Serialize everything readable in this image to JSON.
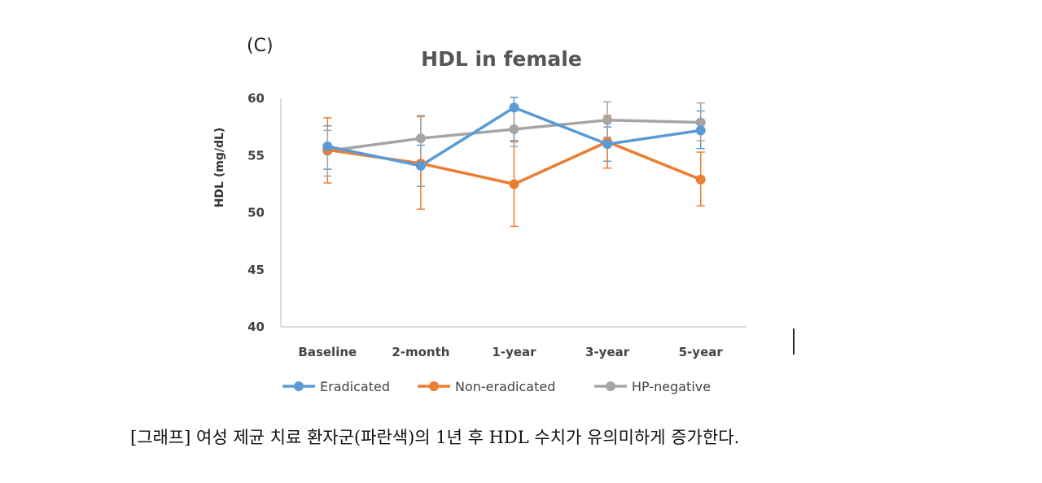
{
  "chart_data": {
    "type": "line",
    "panel_label": "(C)",
    "title": "HDL in female",
    "ylabel": "HDL (mg/dL)",
    "xlabel": "",
    "ylim": [
      40,
      60
    ],
    "yticks": [
      "40",
      "45",
      "50",
      "55",
      "60"
    ],
    "categories": [
      "Baseline",
      "2-month",
      "1-year",
      "3-year",
      "5-year"
    ],
    "error_bars": true,
    "legend_position": "bottom",
    "series": [
      {
        "name": "Eradicated",
        "color": "#5B9BD5",
        "values": [
          55.8,
          54.1,
          59.2,
          56.0,
          57.2
        ],
        "error_low": [
          53.8,
          52.3,
          56.3,
          54.5,
          55.6
        ],
        "error_high": [
          57.6,
          55.9,
          60.1,
          57.5,
          58.9
        ]
      },
      {
        "name": "Non-eradicated",
        "color": "#ED7D31",
        "values": [
          55.5,
          54.3,
          52.5,
          56.2,
          52.9
        ],
        "error_low": [
          52.6,
          50.3,
          48.8,
          53.9,
          50.6
        ],
        "error_high": [
          58.3,
          58.4,
          56.2,
          58.5,
          55.3
        ]
      },
      {
        "name": "HP-negative",
        "color": "#A5A5A5",
        "values": [
          55.4,
          56.5,
          57.3,
          58.1,
          57.9
        ],
        "error_low": [
          53.2,
          54.5,
          55.8,
          56.6,
          56.3
        ],
        "error_high": [
          57.2,
          58.5,
          58.9,
          59.7,
          59.6
        ]
      }
    ]
  },
  "caption": "[그래프] 여성 제균 치료 환자군(파란색)의 1년 후 HDL 수치가 유의미하게 증가한다."
}
